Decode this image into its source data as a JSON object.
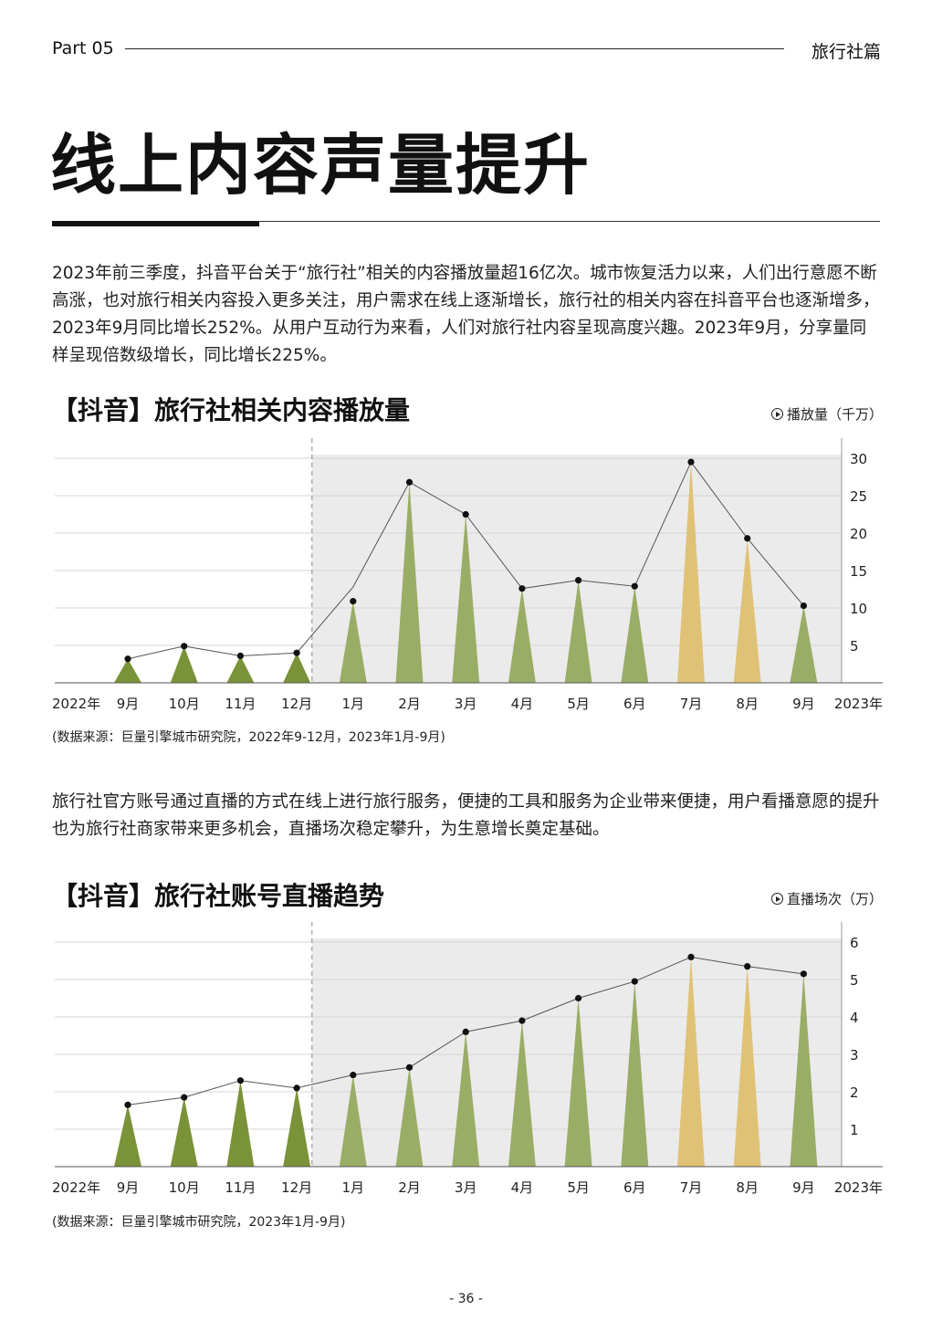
{
  "header": {
    "part": "Part 05",
    "section": "旅行社篇"
  },
  "title": "线上内容声量提升",
  "paragraph1": "2023年前三季度，抖音平台关于“旅行社”相关的内容播放量超16亿次。城市恢复活力以来，人们出行意愿不断高涨，也对旅行相关内容投入更多关注，用户需求在线上逐渐增长，旅行社的相关内容在抖音平台也逐渐增多，2023年9月同比增长252%。从用户互动行为来看，人们对旅行社内容呈现高度兴趣。2023年9月，分享量同样呈现倍数级增长，同比增长225%。",
  "paragraph2": "旅行社官方账号通过直播的方式在线上进行旅行服务，便捷的工具和服务为企业带来便捷，用户看播意愿的提升也为旅行社商家带来更多机会，直播场次稳定攀升，为生意增长奠定基础。",
  "colors": {
    "dark_green": "#7a9238",
    "light_green": "#9aad66",
    "yellow": "#e0c276",
    "shade": "#ebebeb",
    "line": "#555555"
  },
  "chart_data": [
    {
      "type": "area",
      "title": "【抖音】旅行社相关内容播放量",
      "unit_label": "播放量（千万）",
      "icon": "play-circle-icon",
      "x_start_label": "2022年",
      "x_end_label": "2023年",
      "categories": [
        "9月",
        "10月",
        "11月",
        "12月",
        "1月",
        "2月",
        "3月",
        "4月",
        "5月",
        "6月",
        "7月",
        "8月",
        "9月"
      ],
      "values": [
        3.2,
        4.9,
        3.6,
        4.0,
        10.9,
        26.8,
        22.5,
        12.6,
        13.7,
        12.9,
        29.5,
        19.3,
        10.3
      ],
      "line_values": [
        null,
        null,
        null,
        null,
        12.8,
        null,
        null,
        null,
        null,
        null,
        null,
        null,
        null
      ],
      "bar_colors": [
        "dark_green",
        "dark_green",
        "dark_green",
        "dark_green",
        "light_green",
        "light_green",
        "light_green",
        "light_green",
        "light_green",
        "light_green",
        "yellow",
        "yellow",
        "light_green"
      ],
      "y_ticks": [
        5,
        10,
        15,
        20,
        25,
        30
      ],
      "ylim": [
        0,
        30
      ],
      "shaded_from_index": 4,
      "source": "(数据来源：巨量引擎城市研究院，2022年9-12月，2023年1月-9月)"
    },
    {
      "type": "area",
      "title": "【抖音】旅行社账号直播趋势",
      "unit_label": "直播场次（万）",
      "icon": "play-circle-icon",
      "x_start_label": "2022年",
      "x_end_label": "2023年",
      "categories": [
        "9月",
        "10月",
        "11月",
        "12月",
        "1月",
        "2月",
        "3月",
        "4月",
        "5月",
        "6月",
        "7月",
        "8月",
        "9月"
      ],
      "values": [
        1.65,
        1.85,
        2.3,
        2.1,
        2.45,
        2.65,
        3.6,
        3.9,
        4.5,
        4.95,
        5.6,
        5.35,
        5.15
      ],
      "bar_colors": [
        "dark_green",
        "dark_green",
        "dark_green",
        "dark_green",
        "light_green",
        "light_green",
        "light_green",
        "light_green",
        "light_green",
        "light_green",
        "yellow",
        "yellow",
        "light_green"
      ],
      "y_ticks": [
        1,
        2,
        3,
        4,
        5,
        6
      ],
      "ylim": [
        0,
        6
      ],
      "shaded_from_index": 4,
      "source": "(数据来源：巨量引擎城市研究院，2023年1月-9月)"
    }
  ],
  "page_number": "- 36 -"
}
